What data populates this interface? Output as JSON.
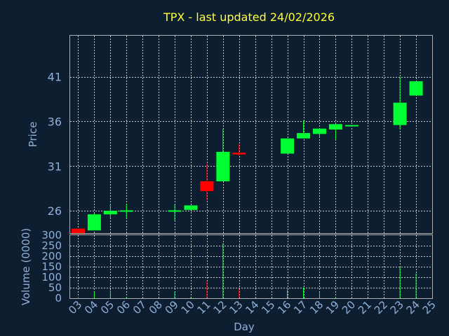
{
  "chart_data": [
    {
      "type": "candlestick",
      "title": "TPX - last updated 24/02/2026",
      "ylabel": "Price",
      "ylim": [
        23.5,
        45.6
      ],
      "yticks": [
        26,
        31,
        36,
        41
      ],
      "colors": {
        "up": "#00ff33",
        "down": "#ff0000",
        "title": "#ffff33",
        "axis_text": "#8fb0d8",
        "background": "#0d1e30"
      },
      "candles": [
        {
          "day": 3,
          "open": 24.0,
          "close": 23.4,
          "high": 24.0,
          "low": 23.4
        },
        {
          "day": 4,
          "open": 23.8,
          "close": 25.6,
          "high": 25.7,
          "low": 23.8
        },
        {
          "day": 5,
          "open": 25.6,
          "close": 26.0,
          "high": 26.8,
          "low": 25.2
        },
        {
          "day": 6,
          "open": 26.0,
          "close": 26.05,
          "high": 26.8,
          "low": 25.2
        },
        {
          "day": 9,
          "open": 26.0,
          "close": 26.05,
          "high": 26.7,
          "low": 24.9
        },
        {
          "day": 10,
          "open": 26.1,
          "close": 26.6,
          "high": 26.6,
          "low": 26.0
        },
        {
          "day": 11,
          "open": 29.3,
          "close": 28.2,
          "high": 31.3,
          "low": 27.2
        },
        {
          "day": 12,
          "open": 29.3,
          "close": 32.6,
          "high": 35.2,
          "low": 29.3
        },
        {
          "day": 13,
          "open": 32.5,
          "close": 32.3,
          "high": 33.5,
          "low": 32.2
        },
        {
          "day": 16,
          "open": 32.4,
          "close": 34.1,
          "high": 34.1,
          "low": 32.4
        },
        {
          "day": 17,
          "open": 34.1,
          "close": 34.7,
          "high": 36.1,
          "low": 34.1
        },
        {
          "day": 18,
          "open": 34.6,
          "close": 35.2,
          "high": 35.2,
          "low": 34.3
        },
        {
          "day": 19,
          "open": 35.1,
          "close": 35.7,
          "high": 35.7,
          "low": 34.0
        },
        {
          "day": 20,
          "open": 35.5,
          "close": 35.6,
          "high": 35.6,
          "low": 35.5
        },
        {
          "day": 23,
          "open": 35.6,
          "close": 38.1,
          "high": 41.0,
          "low": 35.1
        },
        {
          "day": 24,
          "open": 38.9,
          "close": 40.5,
          "high": 40.5,
          "low": 38.9
        }
      ]
    },
    {
      "type": "bar",
      "ylabel": "Volume (0000)",
      "xlabel": "Day",
      "ylim": [
        0,
        300
      ],
      "yticks": [
        0,
        50,
        100,
        150,
        200,
        250,
        300
      ],
      "x_tick_labels": [
        "03",
        "04",
        "05",
        "06",
        "07",
        "08",
        "09",
        "10",
        "11",
        "12",
        "13",
        "14",
        "15",
        "16",
        "17",
        "18",
        "19",
        "20",
        "21",
        "22",
        "23",
        "24",
        "25"
      ],
      "days": [
        3,
        4,
        5,
        6,
        9,
        10,
        11,
        12,
        13,
        16,
        17,
        18,
        19,
        20,
        23,
        24
      ],
      "values": [
        5,
        28,
        38,
        6,
        30,
        5,
        82,
        262,
        45,
        40,
        52,
        25,
        3,
        3,
        148,
        118
      ],
      "directions": [
        "down",
        "up",
        "up",
        "up",
        "up",
        "up",
        "down",
        "up",
        "down",
        "up",
        "up",
        "up",
        "up",
        "up",
        "up",
        "up"
      ]
    }
  ]
}
